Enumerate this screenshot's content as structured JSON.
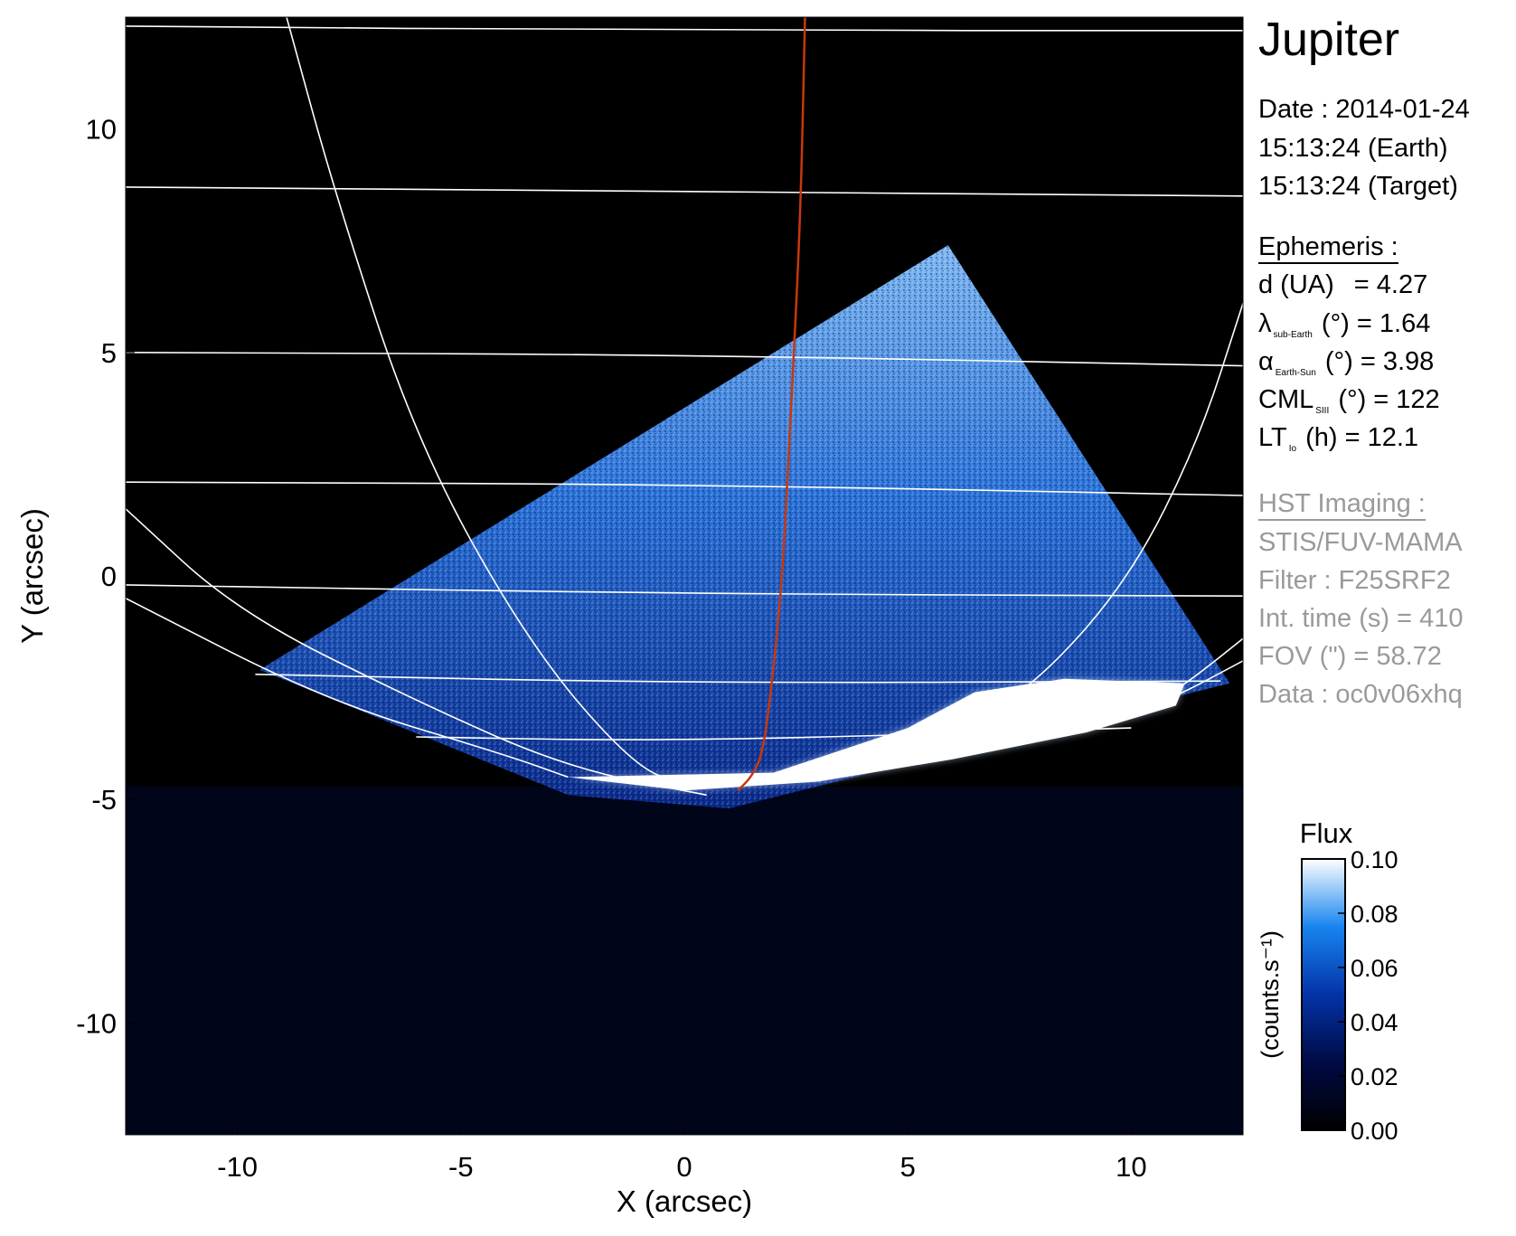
{
  "chart_data": {
    "type": "heatmap",
    "title": "Jupiter",
    "xlabel": "X (arcsec)",
    "ylabel": "Y (arcsec)",
    "xlim": [
      -12.5,
      12.5
    ],
    "ylim": [
      -12.5,
      12.5
    ],
    "x_ticks": [
      {
        "value": -10,
        "label": "-10"
      },
      {
        "value": -5,
        "label": "-5"
      },
      {
        "value": 0,
        "label": "0"
      },
      {
        "value": 5,
        "label": "5"
      },
      {
        "value": 10,
        "label": "10"
      }
    ],
    "y_ticks": [
      {
        "value": 10,
        "label": "10"
      },
      {
        "value": 5,
        "label": "5"
      },
      {
        "value": 0,
        "label": "0"
      },
      {
        "value": -5,
        "label": "-5"
      },
      {
        "value": -10,
        "label": "-10"
      }
    ],
    "image_footprint": [
      [
        -9.5,
        -2.1
      ],
      [
        5.9,
        7.4
      ],
      [
        12.2,
        -2.4
      ],
      [
        1.0,
        -5.2
      ],
      [
        -2.6,
        -4.9
      ]
    ],
    "auroral_oval": [
      [
        -2.6,
        -4.5
      ],
      [
        0.0,
        -4.8
      ],
      [
        3.0,
        -4.6
      ],
      [
        6.0,
        -4.1
      ],
      [
        9.0,
        -3.5
      ],
      [
        11.0,
        -2.9
      ],
      [
        11.2,
        -2.4
      ],
      [
        8.5,
        -2.3
      ],
      [
        6.5,
        -2.6
      ],
      [
        5.0,
        -3.4
      ],
      [
        2.0,
        -4.4
      ]
    ],
    "latitude_lines": [
      [
        [
          -12.5,
          12.3
        ],
        [
          0,
          12.2
        ],
        [
          12.5,
          12.2
        ]
      ],
      [
        [
          -12.5,
          8.7
        ],
        [
          0,
          8.6
        ],
        [
          12.5,
          8.5
        ]
      ],
      [
        [
          -12.5,
          5.0
        ],
        [
          0,
          4.95
        ],
        [
          12.5,
          4.7
        ]
      ],
      [
        [
          -12.5,
          2.1
        ],
        [
          0,
          2.05
        ],
        [
          12.5,
          1.8
        ]
      ],
      [
        [
          -12.5,
          -0.2
        ],
        [
          0,
          -0.4
        ],
        [
          12.5,
          -0.45
        ]
      ],
      [
        [
          -9.6,
          -2.2
        ],
        [
          0,
          -2.4
        ],
        [
          12.0,
          -2.35
        ]
      ],
      [
        [
          -6.0,
          -3.6
        ],
        [
          0,
          -3.7
        ],
        [
          10.0,
          -3.4
        ]
      ]
    ],
    "longitude_lines": [
      [
        [
          -8.9,
          12.5
        ],
        [
          -7.8,
          8.5
        ],
        [
          -6.0,
          3.0
        ],
        [
          -3.5,
          -1.5
        ],
        [
          -1.2,
          -4.2
        ],
        [
          0.0,
          -4.7
        ]
      ],
      [
        [
          -12.5,
          1.5
        ],
        [
          -10.0,
          -0.8
        ],
        [
          -6.0,
          -2.8
        ],
        [
          -2.6,
          -4.3
        ],
        [
          0.5,
          -4.9
        ]
      ],
      [
        [
          -12.5,
          -0.5
        ],
        [
          -8.0,
          -2.8
        ],
        [
          -4.0,
          -4.0
        ],
        [
          -2.6,
          -4.5
        ]
      ],
      [
        [
          12.5,
          6.1
        ],
        [
          11.5,
          3.0
        ],
        [
          10.0,
          0.0
        ],
        [
          8.0,
          -2.3
        ],
        [
          6.5,
          -3.2
        ]
      ],
      [
        [
          12.5,
          -1.4
        ],
        [
          11.5,
          -2.2
        ],
        [
          10.5,
          -2.9
        ],
        [
          9.0,
          -3.3
        ]
      ],
      [
        [
          12.5,
          -1.9
        ],
        [
          11.0,
          -2.7
        ],
        [
          9.5,
          -3.3
        ]
      ]
    ],
    "central_meridian": [
      [
        2.7,
        12.5
      ],
      [
        2.6,
        8.0
      ],
      [
        2.4,
        4.0
      ],
      [
        2.2,
        0.0
      ],
      [
        1.95,
        -2.5
      ],
      [
        1.75,
        -4.0
      ],
      [
        1.5,
        -4.5
      ],
      [
        1.2,
        -4.8
      ]
    ],
    "colorbar": {
      "title": "Flux",
      "label": "(counts.s⁻¹)",
      "range": [
        0.0,
        0.1
      ],
      "tick_labels": [
        "0.10",
        "0.08",
        "0.06",
        "0.04",
        "0.02",
        "0.00"
      ]
    },
    "colors": {
      "background": "#000000",
      "low": "#000010",
      "mid": "#1060e0",
      "high": "#ffffff",
      "grid_lines": "#ffffff",
      "central_meridian": "#c8380c"
    }
  },
  "info": {
    "date_line": "Date : 2014-01-24",
    "time_earth": "15:13:24 (Earth)",
    "time_target": "15:13:24 (Target)",
    "ephemeris_heading": "Ephemeris :",
    "d_label": "d (UA)",
    "d_value": "= 4.27",
    "lambda_symbol": "λ",
    "lambda_sub": "sub-Earth",
    "lambda_rest": "(°) = 1.64",
    "alpha_symbol": "α",
    "alpha_sub": "Earth-Sun",
    "alpha_rest": "(°) = 3.98",
    "cml_label": "CML",
    "cml_sub": "SIII",
    "cml_rest": "(°) = 122",
    "lt_label": "LT",
    "lt_sub": "Io",
    "lt_rest": "(h) = 12.1",
    "hst_heading": "HST Imaging :",
    "instrument": "STIS/FUV-MAMA",
    "filter": "Filter : F25SRF2",
    "int_time": "Int. time (s) = 410",
    "fov": "FOV (\") = 58.72",
    "data_id": "Data : oc0v06xhq"
  }
}
